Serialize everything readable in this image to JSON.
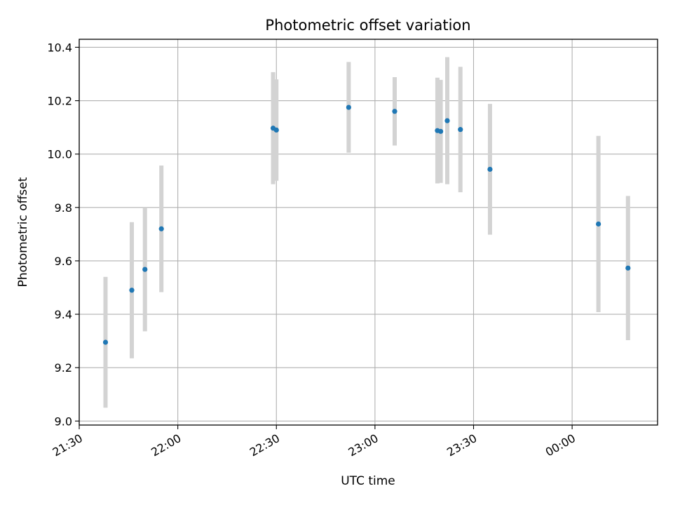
{
  "chart_data": {
    "type": "scatter",
    "title": "Photometric offset variation",
    "xlabel": "UTC time",
    "ylabel": "Photometric offset",
    "xlim": [
      "21:30",
      "00:26"
    ],
    "ylim": [
      8.985,
      10.43
    ],
    "grid": true,
    "x_ticks": [
      "21:30",
      "22:00",
      "22:30",
      "23:00",
      "23:30",
      "00:00"
    ],
    "y_ticks": [
      "9.0",
      "9.2",
      "9.4",
      "9.6",
      "9.8",
      "10.0",
      "10.2",
      "10.4"
    ],
    "marker_color": "#1f77b4",
    "errorbar_color": "#d3d3d3",
    "points": [
      {
        "x": "21:38",
        "y": 9.295,
        "yerr": 0.245
      },
      {
        "x": "21:46",
        "y": 9.49,
        "yerr": 0.255
      },
      {
        "x": "21:50",
        "y": 9.568,
        "yerr": 0.232
      },
      {
        "x": "21:55",
        "y": 9.72,
        "yerr": 0.237
      },
      {
        "x": "22:29",
        "y": 10.097,
        "yerr": 0.21
      },
      {
        "x": "22:30",
        "y": 10.09,
        "yerr": 0.19
      },
      {
        "x": "22:52",
        "y": 10.175,
        "yerr": 0.17
      },
      {
        "x": "23:06",
        "y": 10.16,
        "yerr": 0.128
      },
      {
        "x": "23:19",
        "y": 10.088,
        "yerr": 0.198
      },
      {
        "x": "23:20",
        "y": 10.085,
        "yerr": 0.193
      },
      {
        "x": "23:22",
        "y": 10.125,
        "yerr": 0.238
      },
      {
        "x": "23:26",
        "y": 10.092,
        "yerr": 0.235
      },
      {
        "x": "23:35",
        "y": 9.943,
        "yerr": 0.245
      },
      {
        "x": "00:08",
        "y": 9.738,
        "yerr": 0.33
      },
      {
        "x": "00:17",
        "y": 9.573,
        "yerr": 0.27
      }
    ]
  }
}
